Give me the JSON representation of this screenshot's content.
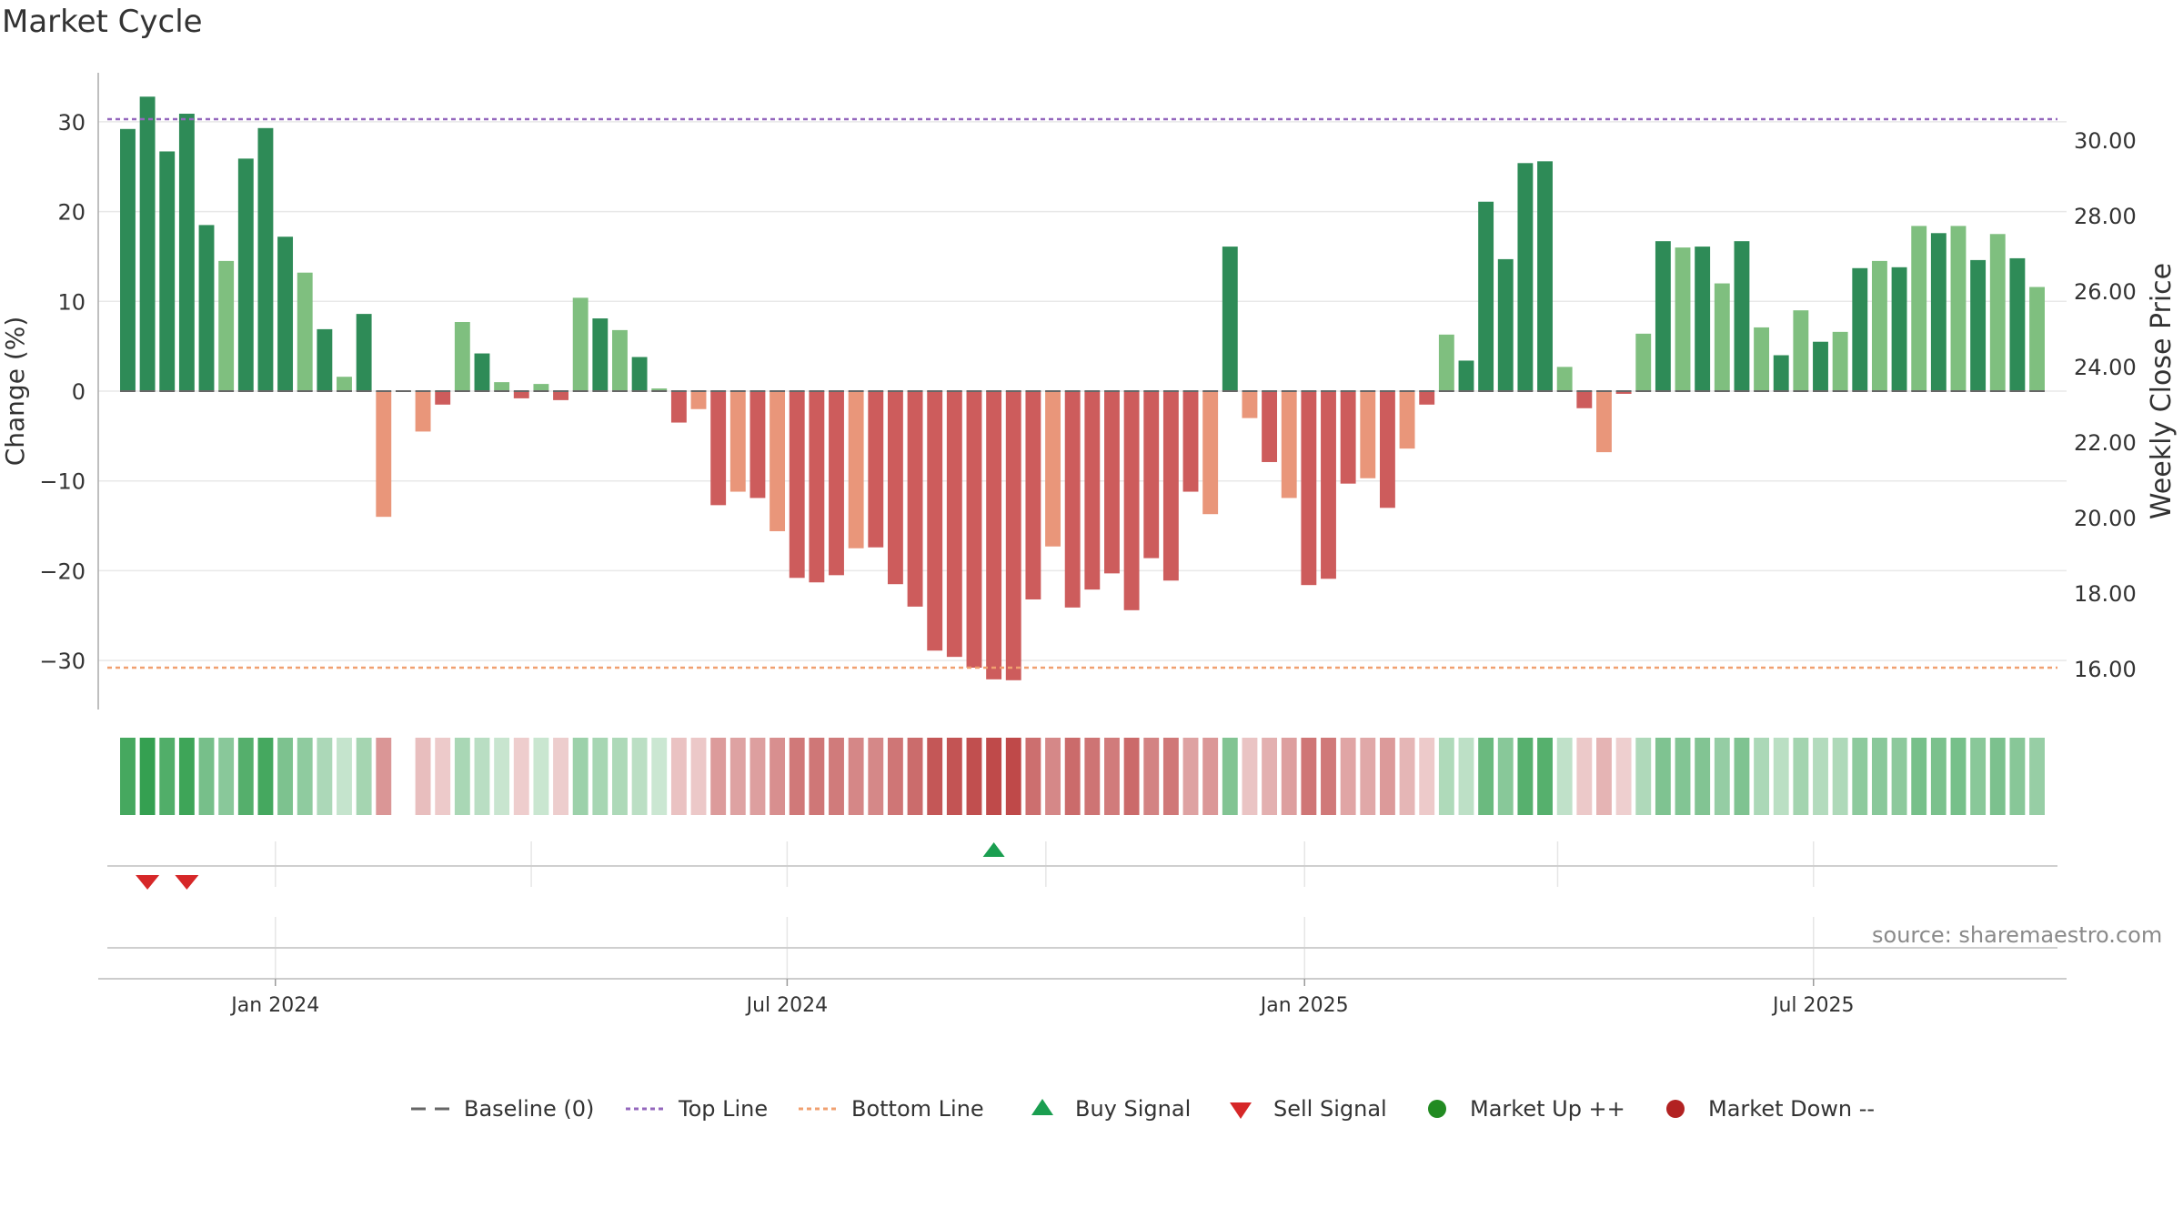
{
  "chart_data": {
    "type": "bar",
    "title": "Market Cycle",
    "ylabel": "Change (%)",
    "y2label": "Weekly Close Price",
    "ylim": [
      -35,
      35
    ],
    "y2lim": [
      14.9,
      31.6
    ],
    "yticks": [
      -30,
      -20,
      -10,
      0,
      10,
      20,
      30
    ],
    "y2ticks": [
      "16.00",
      "18.00",
      "20.00",
      "22.00",
      "24.00",
      "26.00",
      "28.00",
      "30.00"
    ],
    "y2tick_values": [
      16,
      18,
      20,
      22,
      24,
      26,
      28,
      30
    ],
    "x_start": "2023-10-30",
    "x_end": "2025-09-29",
    "xticks": [
      {
        "label": "Jan 2024",
        "date": "2024-01-01"
      },
      {
        "label": "Jul 2024",
        "date": "2024-07-01"
      },
      {
        "label": "Jan 2025",
        "date": "2025-01-01"
      },
      {
        "label": "Jul 2025",
        "date": "2025-07-01"
      }
    ],
    "weeks_start": "2023-11-06",
    "values": [
      29.2,
      32.8,
      26.7,
      30.9,
      18.5,
      14.5,
      25.9,
      29.3,
      17.2,
      13.2,
      6.9,
      1.6,
      8.6,
      -14,
      0,
      -4.5,
      -1.5,
      7.7,
      4.2,
      1,
      -0.8,
      0.8,
      -1,
      10.4,
      8.1,
      6.8,
      3.8,
      0.3,
      -3.5,
      -2,
      -12.7,
      -11.2,
      -11.9,
      -15.6,
      -20.8,
      -21.3,
      -20.5,
      -17.5,
      -17.4,
      -21.5,
      -24,
      -28.9,
      -29.6,
      -30.8,
      -32.1,
      -32.2,
      -23.2,
      -17.3,
      -24.1,
      -22.1,
      -20.3,
      -24.4,
      -18.6,
      -21.1,
      -11.2,
      -13.7,
      16.1,
      -3,
      -7.9,
      -11.9,
      -21.6,
      -20.9,
      -10.3,
      -9.7,
      -13,
      -6.4,
      -1.5,
      6.3,
      3.4,
      21.1,
      14.7,
      25.4,
      25.6,
      2.7,
      -1.9,
      -6.8,
      -0.3,
      6.4,
      16.7,
      16,
      16.1,
      12,
      16.7,
      7.1,
      4,
      9,
      5.5,
      6.6,
      13.7,
      14.5,
      13.8,
      18.4,
      17.6,
      18.4,
      14.6,
      17.5,
      14.8,
      11.6
    ],
    "top_line": 30.3,
    "bottom_line": -30.8,
    "buy_signals": [
      "2024-09-09"
    ],
    "sell_signals": [
      "2023-11-13",
      "2023-11-27"
    ],
    "legend": [
      "Baseline (0)",
      "Top Line",
      "Bottom Line",
      "Buy Signal",
      "Sell Signal",
      "Market Up ++",
      "Market Down --"
    ],
    "grid": true,
    "legend_position": "bottom-center"
  },
  "source": "source: sharemaestro.com",
  "colors": {
    "strong_up": "#2e8b57",
    "up": "#7fbf7f",
    "strong_down": "#cd5c5c",
    "down": "#e9967a",
    "top_line": "#9467bd",
    "bottom_line": "#f0a070",
    "baseline": "#666666",
    "buy": "#1a9e50",
    "sell": "#d62728",
    "market_up": "#228b22",
    "market_down": "#b22222"
  }
}
